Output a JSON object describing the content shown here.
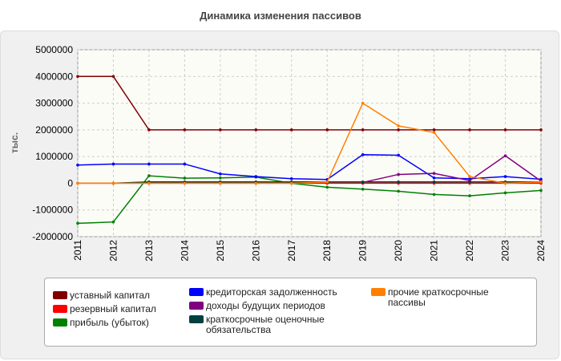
{
  "chart_data": {
    "type": "line",
    "title": "Динамика изменения пассивов",
    "y_label": "тыс.",
    "categories": [
      "2011",
      "2012",
      "2013",
      "2014",
      "2015",
      "2016",
      "2017",
      "2018",
      "2019",
      "2020",
      "2021",
      "2022",
      "2023",
      "2024"
    ],
    "ylim": [
      -2000000,
      5000000
    ],
    "yticks": [
      -2000000,
      -1000000,
      0,
      1000000,
      2000000,
      3000000,
      4000000,
      5000000
    ],
    "grid": true,
    "series": [
      {
        "name": "уставный капитал",
        "color": "#800000",
        "values": [
          4000000,
          4000000,
          2000000,
          2000000,
          2000000,
          2000000,
          2000000,
          2000000,
          2000000,
          2000000,
          2000000,
          2000000,
          2000000,
          2000000
        ]
      },
      {
        "name": "резервный капитал",
        "color": "#ff0000",
        "values": [
          0,
          0,
          0,
          0,
          0,
          0,
          0,
          0,
          0,
          0,
          0,
          0,
          0,
          0
        ]
      },
      {
        "name": "прибыль (убыток)",
        "color": "#008000",
        "values": [
          -1500000,
          -1450000,
          280000,
          190000,
          200000,
          230000,
          0,
          -150000,
          -220000,
          -300000,
          -420000,
          -470000,
          -360000,
          -270000
        ]
      },
      {
        "name": "кредиторская задолженность",
        "color": "#0000ff",
        "values": [
          680000,
          720000,
          720000,
          720000,
          350000,
          250000,
          170000,
          140000,
          1070000,
          1050000,
          200000,
          170000,
          250000,
          150000
        ]
      },
      {
        "name": "доходы будущих периодов",
        "color": "#800080",
        "values": [
          null,
          null,
          null,
          null,
          null,
          null,
          null,
          null,
          30000,
          330000,
          370000,
          100000,
          1030000,
          80000
        ]
      },
      {
        "name": "краткосрочные оценочные обязательства",
        "color": "#004040",
        "values": [
          null,
          0,
          50000,
          50000,
          50000,
          50000,
          50000,
          50000,
          50000,
          50000,
          50000,
          50000,
          50000,
          50000
        ]
      },
      {
        "name": "прочие краткосрочные пассивы",
        "color": "#ff8000",
        "values": [
          0,
          0,
          0,
          0,
          0,
          0,
          0,
          50000,
          3000000,
          2150000,
          1900000,
          250000,
          0,
          50000
        ]
      }
    ]
  }
}
